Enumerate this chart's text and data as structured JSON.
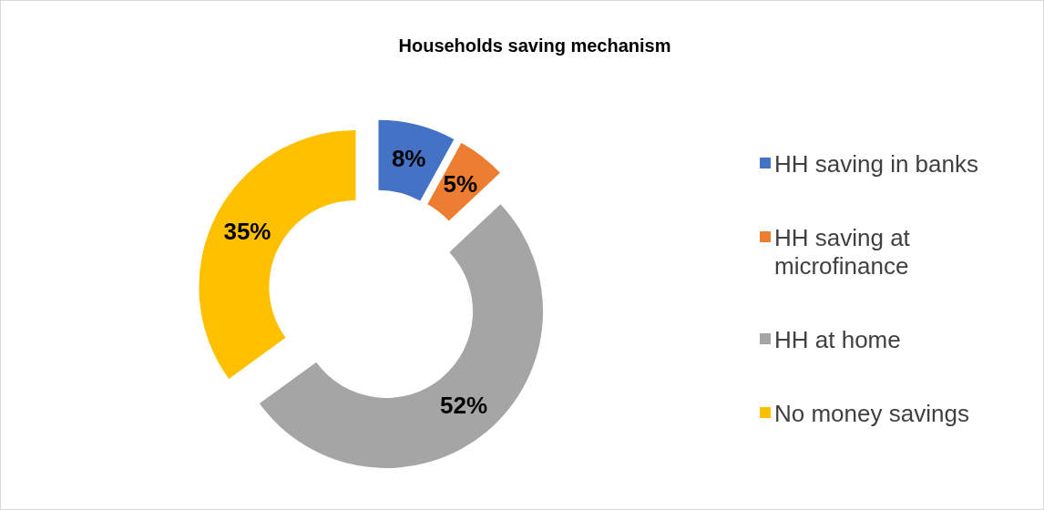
{
  "chart_data": {
    "type": "donut",
    "title": "Households saving mechanism",
    "categories": [
      "HH saving in banks",
      "HH saving at microfinance",
      "HH at home",
      "No money savings"
    ],
    "values": [
      8,
      5,
      52,
      35
    ],
    "value_labels": [
      "8%",
      "5%",
      "52%",
      "35%"
    ],
    "colors": [
      "#4472c4",
      "#ed7d31",
      "#a5a5a5",
      "#ffc000"
    ],
    "legend": "right"
  }
}
